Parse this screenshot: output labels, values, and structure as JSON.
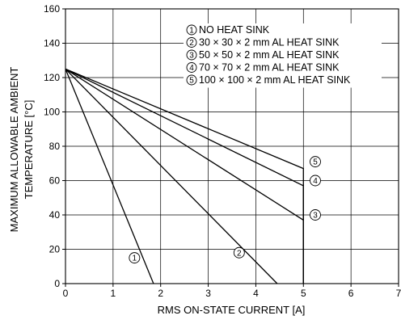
{
  "chart_data": {
    "type": "line",
    "xlabel": "RMS ON-STATE CURRENT [A]",
    "ylabel_lines": [
      "MAXIMUM ALLOWABLE AMBIENT",
      "TEMPERATURE [°C]"
    ],
    "xlim": [
      0,
      7
    ],
    "ylim": [
      0,
      160
    ],
    "x_ticks": [
      0,
      1,
      2,
      3,
      4,
      5,
      6,
      7
    ],
    "y_ticks": [
      0,
      20,
      40,
      60,
      80,
      100,
      120,
      140,
      160
    ],
    "grid": true,
    "legend_position": "top-right",
    "series": [
      {
        "marker": "1",
        "name": "NO HEAT SINK",
        "points": [
          [
            0,
            125
          ],
          [
            1.85,
            0
          ]
        ]
      },
      {
        "marker": "2",
        "name": "30 × 30 × 2 mm AL HEAT SINK",
        "points": [
          [
            0,
            125
          ],
          [
            4.45,
            0
          ]
        ]
      },
      {
        "marker": "3",
        "name": "50 × 50 × 2 mm AL HEAT SINK",
        "points": [
          [
            0,
            125
          ],
          [
            5,
            37
          ],
          [
            5,
            0
          ]
        ]
      },
      {
        "marker": "4",
        "name": "70 × 70 × 2 mm AL HEAT SINK",
        "points": [
          [
            0,
            125
          ],
          [
            5,
            57
          ],
          [
            5,
            0
          ]
        ]
      },
      {
        "marker": "5",
        "name": "100 × 100 × 2 mm AL HEAT SINK",
        "points": [
          [
            0,
            125
          ],
          [
            5,
            67
          ],
          [
            5,
            0
          ]
        ]
      }
    ],
    "curve_labels": [
      {
        "marker": "1",
        "x": 1.45,
        "y": 15
      },
      {
        "marker": "2",
        "x": 3.65,
        "y": 18
      },
      {
        "marker": "3",
        "x": 5.25,
        "y": 40
      },
      {
        "marker": "4",
        "x": 5.25,
        "y": 60
      },
      {
        "marker": "5",
        "x": 5.25,
        "y": 71
      }
    ]
  }
}
